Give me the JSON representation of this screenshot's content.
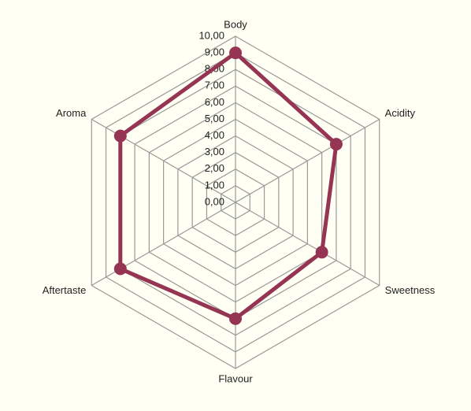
{
  "chart_data": {
    "type": "radar",
    "categories": [
      "Body",
      "Acidity",
      "Sweetness",
      "Flavour",
      "Aftertaste",
      "Aroma"
    ],
    "series": [
      {
        "name": null,
        "color": "#953553",
        "values": [
          9,
          7,
          6,
          7,
          8,
          8
        ]
      }
    ],
    "rlim": [
      0,
      10
    ],
    "rticks": [
      {
        "value": 0,
        "label": "0,00"
      },
      {
        "value": 1,
        "label": "1,00"
      },
      {
        "value": 2,
        "label": "2,00"
      },
      {
        "value": 3,
        "label": "3,00"
      },
      {
        "value": 4,
        "label": "4,00"
      },
      {
        "value": 5,
        "label": "5,00"
      },
      {
        "value": 6,
        "label": "6,00"
      },
      {
        "value": 7,
        "label": "7,00"
      },
      {
        "value": 8,
        "label": "8,00"
      },
      {
        "value": 9,
        "label": "9,00"
      },
      {
        "value": 10,
        "label": "10,00"
      }
    ],
    "grid": true
  }
}
